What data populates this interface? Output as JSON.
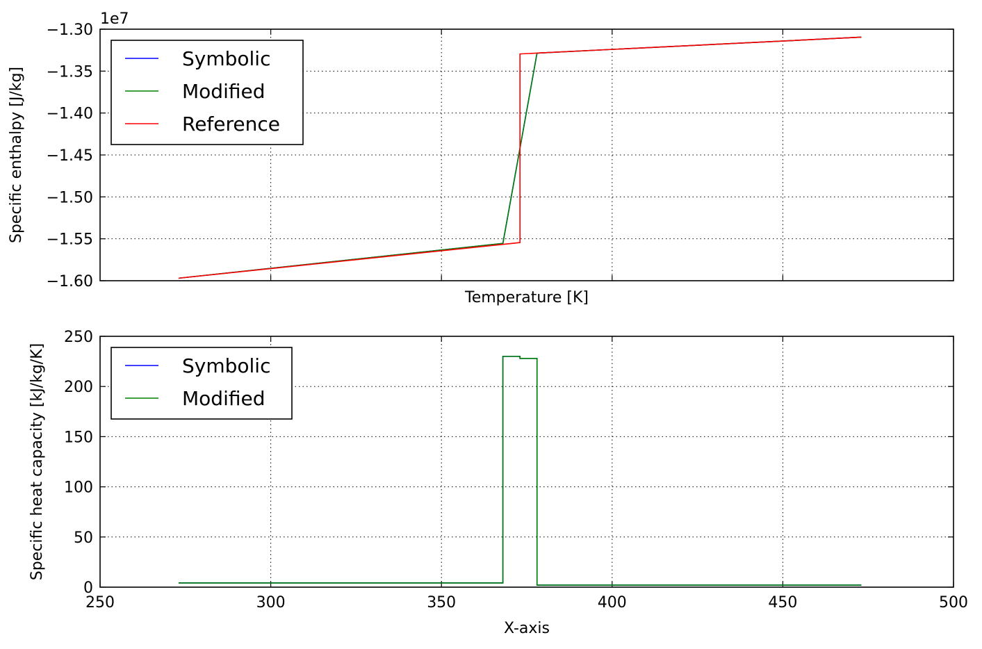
{
  "chart_data": [
    {
      "type": "line",
      "title": "",
      "xlabel": "Temperature [K]",
      "ylabel": "Specific enthalpy [J/kg]",
      "y_offset_label": "1e7",
      "y_unit_scale": 10000000,
      "xlim": [
        250,
        500
      ],
      "ylim": [
        -1.6,
        -1.3
      ],
      "x_ticks": [
        300,
        350,
        400,
        450
      ],
      "x_tick_labels_visible": false,
      "y_ticks": [
        -1.6,
        -1.55,
        -1.5,
        -1.45,
        -1.4,
        -1.35,
        -1.3
      ],
      "y_tick_labels": [
        "−1.60",
        "−1.55",
        "−1.50",
        "−1.45",
        "−1.40",
        "−1.35",
        "−1.30"
      ],
      "grid": true,
      "legend_position": "upper-left",
      "series": [
        {
          "name": "Symbolic",
          "color": "#0000ff",
          "x": [
            273,
            368,
            378,
            473
          ],
          "y": [
            -1.597,
            -1.5555,
            -1.3285,
            -1.3095
          ]
        },
        {
          "name": "Modified",
          "color": "#008000",
          "x": [
            273,
            368,
            378,
            473
          ],
          "y": [
            -1.597,
            -1.5555,
            -1.3285,
            -1.3095
          ]
        },
        {
          "name": "Reference",
          "color": "#ff0000",
          "x": [
            273,
            373,
            373,
            473
          ],
          "y": [
            -1.597,
            -1.5545,
            -1.3295,
            -1.3095
          ]
        }
      ]
    },
    {
      "type": "line",
      "title": "",
      "xlabel": "X-axis",
      "ylabel": "Specific heat capacity [kJ/kg/K]",
      "xlim": [
        250,
        500
      ],
      "ylim": [
        0,
        250
      ],
      "x_ticks": [
        250,
        300,
        350,
        400,
        450,
        500
      ],
      "x_tick_labels": [
        "250",
        "300",
        "350",
        "400",
        "450",
        "500"
      ],
      "y_ticks": [
        0,
        50,
        100,
        150,
        200,
        250
      ],
      "y_tick_labels": [
        "0",
        "50",
        "100",
        "150",
        "200",
        "250"
      ],
      "grid": true,
      "legend_position": "upper-left",
      "series": [
        {
          "name": "Symbolic",
          "color": "#0000ff",
          "x": [
            273,
            368,
            368,
            373,
            373,
            378,
            378,
            473
          ],
          "y": [
            4.2,
            4.2,
            230,
            230,
            228,
            228,
            2.0,
            2.0
          ]
        },
        {
          "name": "Modified",
          "color": "#008000",
          "x": [
            273,
            368,
            368,
            373,
            373,
            378,
            378,
            473
          ],
          "y": [
            4.2,
            4.2,
            230,
            230,
            228,
            228,
            2.0,
            2.0
          ]
        }
      ]
    }
  ]
}
